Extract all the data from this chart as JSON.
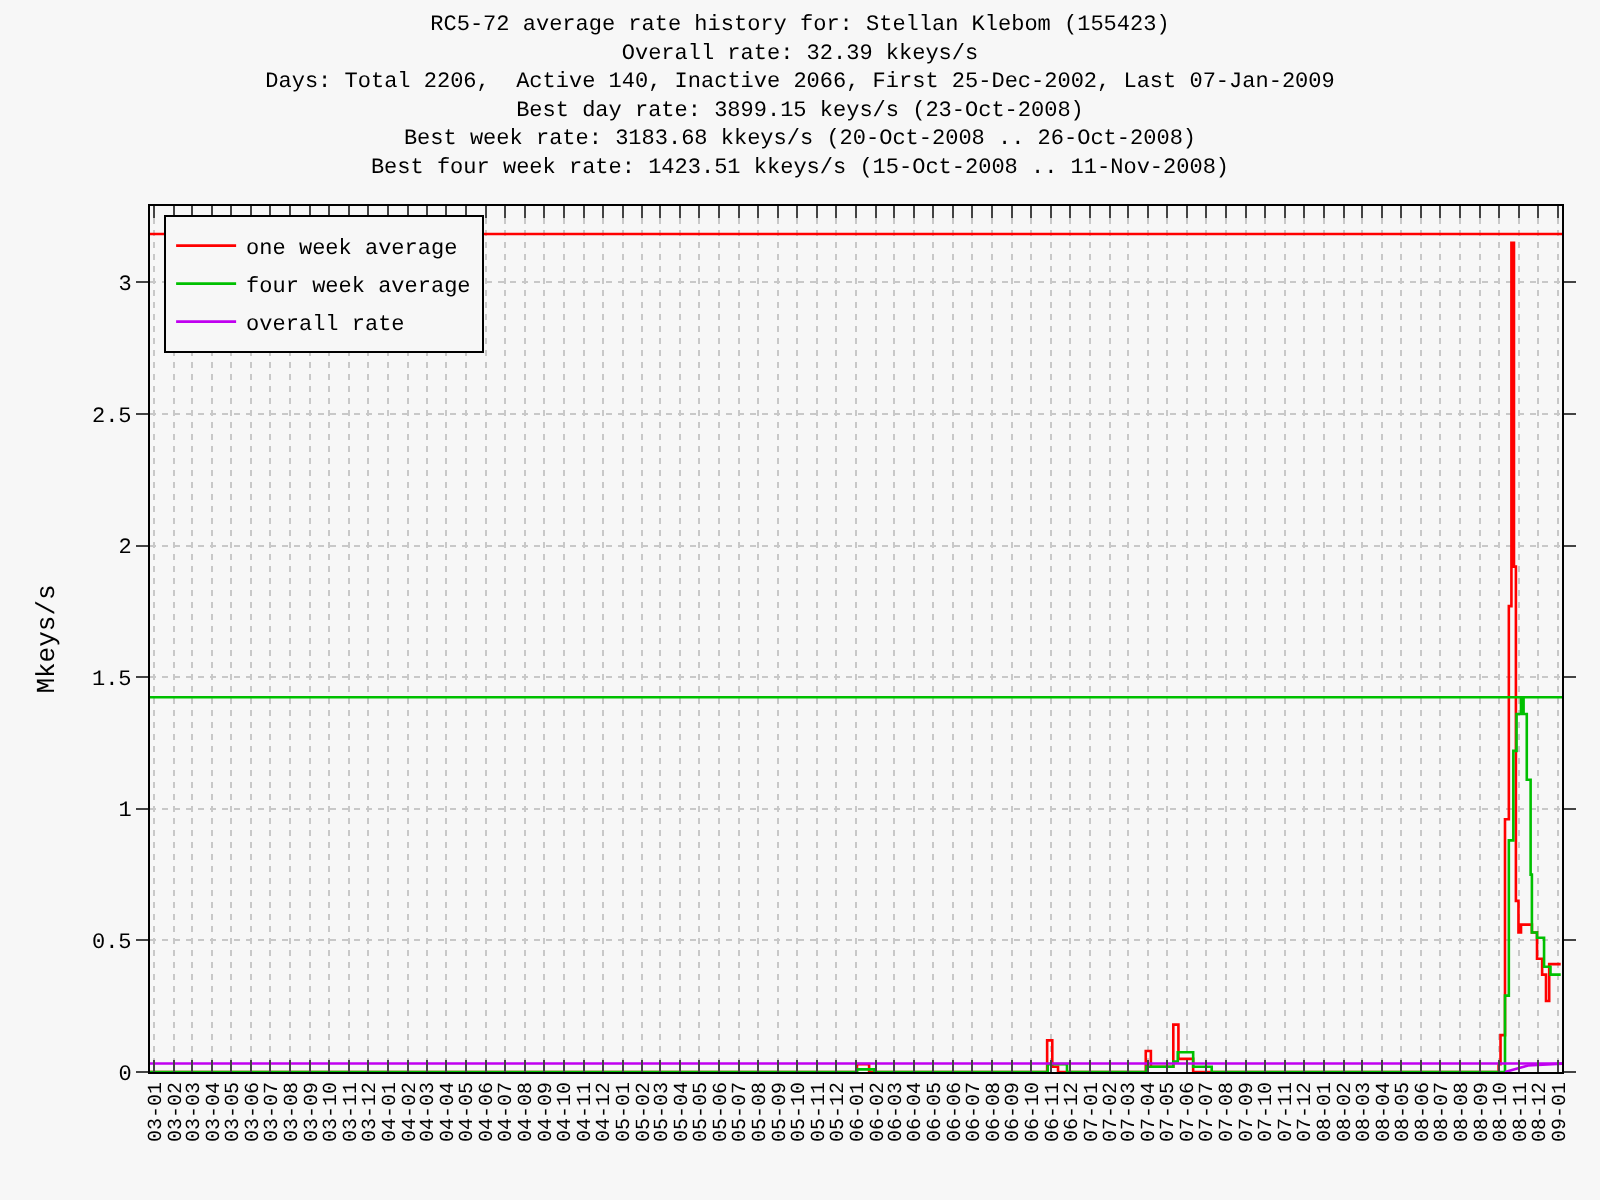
{
  "chart_data": {
    "type": "step",
    "title": "RC5-72 average rate history for: Stellan Klebom (155423)\nOverall rate: 32.39 kkeys/s\nDays: Total 2206,  Active 140, Inactive 2066, First 25-Dec-2002, Last 07-Jan-2009\nBest day rate: 3899.15 keys/s (23-Oct-2008)\nBest week rate: 3183.68 kkeys/s (20-Oct-2008 .. 26-Oct-2008)\nBest four week rate: 1423.51 kkeys/s (15-Oct-2008 .. 11-Nov-2008)",
    "ylabel": "Mkeys/s",
    "xlim": [
      "2002-12-25",
      "2009-01-07"
    ],
    "ylim": [
      0,
      3.29
    ],
    "yticks": [
      0,
      0.5,
      1,
      1.5,
      2,
      2.5,
      3
    ],
    "xticks": [
      {
        "value": "2003-01-01",
        "label": "03-01"
      },
      {
        "value": "2003-02-01",
        "label": "03-02"
      },
      {
        "value": "2003-03-01",
        "label": "03-03"
      },
      {
        "value": "2003-04-01",
        "label": "03-04"
      },
      {
        "value": "2003-05-01",
        "label": "03-05"
      },
      {
        "value": "2003-06-01",
        "label": "03-06"
      },
      {
        "value": "2003-07-01",
        "label": "03-07"
      },
      {
        "value": "2003-08-01",
        "label": "03-08"
      },
      {
        "value": "2003-09-01",
        "label": "03-09"
      },
      {
        "value": "2003-10-01",
        "label": "03-10"
      },
      {
        "value": "2003-11-01",
        "label": "03-11"
      },
      {
        "value": "2003-12-01",
        "label": "03-12"
      },
      {
        "value": "2004-01-01",
        "label": "04-01"
      },
      {
        "value": "2004-02-01",
        "label": "04-02"
      },
      {
        "value": "2004-03-01",
        "label": "04-03"
      },
      {
        "value": "2004-04-01",
        "label": "04-04"
      },
      {
        "value": "2004-05-01",
        "label": "04-05"
      },
      {
        "value": "2004-06-01",
        "label": "04-06"
      },
      {
        "value": "2004-07-01",
        "label": "04-07"
      },
      {
        "value": "2004-08-01",
        "label": "04-08"
      },
      {
        "value": "2004-09-01",
        "label": "04-09"
      },
      {
        "value": "2004-10-01",
        "label": "04-10"
      },
      {
        "value": "2004-11-01",
        "label": "04-11"
      },
      {
        "value": "2004-12-01",
        "label": "04-12"
      },
      {
        "value": "2005-01-01",
        "label": "05-01"
      },
      {
        "value": "2005-02-01",
        "label": "05-02"
      },
      {
        "value": "2005-03-01",
        "label": "05-03"
      },
      {
        "value": "2005-04-01",
        "label": "05-04"
      },
      {
        "value": "2005-05-01",
        "label": "05-05"
      },
      {
        "value": "2005-06-01",
        "label": "05-06"
      },
      {
        "value": "2005-07-01",
        "label": "05-07"
      },
      {
        "value": "2005-08-01",
        "label": "05-08"
      },
      {
        "value": "2005-09-01",
        "label": "05-09"
      },
      {
        "value": "2005-10-01",
        "label": "05-10"
      },
      {
        "value": "2005-11-01",
        "label": "05-11"
      },
      {
        "value": "2005-12-01",
        "label": "05-12"
      },
      {
        "value": "2006-01-01",
        "label": "06-01"
      },
      {
        "value": "2006-02-01",
        "label": "06-02"
      },
      {
        "value": "2006-03-01",
        "label": "06-03"
      },
      {
        "value": "2006-04-01",
        "label": "06-04"
      },
      {
        "value": "2006-05-01",
        "label": "06-05"
      },
      {
        "value": "2006-06-01",
        "label": "06-06"
      },
      {
        "value": "2006-07-01",
        "label": "06-07"
      },
      {
        "value": "2006-08-01",
        "label": "06-08"
      },
      {
        "value": "2006-09-01",
        "label": "06-09"
      },
      {
        "value": "2006-10-01",
        "label": "06-10"
      },
      {
        "value": "2006-11-01",
        "label": "06-11"
      },
      {
        "value": "2006-12-01",
        "label": "06-12"
      },
      {
        "value": "2007-01-01",
        "label": "07-01"
      },
      {
        "value": "2007-02-01",
        "label": "07-02"
      },
      {
        "value": "2007-03-01",
        "label": "07-03"
      },
      {
        "value": "2007-04-01",
        "label": "07-04"
      },
      {
        "value": "2007-05-01",
        "label": "07-05"
      },
      {
        "value": "2007-06-01",
        "label": "07-06"
      },
      {
        "value": "2007-07-01",
        "label": "07-07"
      },
      {
        "value": "2007-08-01",
        "label": "07-08"
      },
      {
        "value": "2007-09-01",
        "label": "07-09"
      },
      {
        "value": "2007-10-01",
        "label": "07-10"
      },
      {
        "value": "2007-11-01",
        "label": "07-11"
      },
      {
        "value": "2007-12-01",
        "label": "07-12"
      },
      {
        "value": "2008-01-01",
        "label": "08-01"
      },
      {
        "value": "2008-02-01",
        "label": "08-02"
      },
      {
        "value": "2008-03-01",
        "label": "08-03"
      },
      {
        "value": "2008-04-01",
        "label": "08-04"
      },
      {
        "value": "2008-05-01",
        "label": "08-05"
      },
      {
        "value": "2008-06-01",
        "label": "08-06"
      },
      {
        "value": "2008-07-01",
        "label": "08-07"
      },
      {
        "value": "2008-08-01",
        "label": "08-08"
      },
      {
        "value": "2008-09-01",
        "label": "08-09"
      },
      {
        "value": "2008-10-01",
        "label": "08-10"
      },
      {
        "value": "2008-11-01",
        "label": "08-11"
      },
      {
        "value": "2008-12-01",
        "label": "08-12"
      },
      {
        "value": "2009-01-01",
        "label": "09-01"
      }
    ],
    "grid": true,
    "legend": "top left",
    "series": [
      {
        "name": "one week average",
        "color": "#ff0000",
        "x": [
          "2002-12-25",
          "2006-01-01",
          "2006-01-02",
          "2006-01-20",
          "2006-01-21",
          "2006-10-25",
          "2006-10-26",
          "2006-11-02",
          "2006-11-03",
          "2006-11-12",
          "2007-03-28",
          "2007-03-29",
          "2007-04-05",
          "2007-04-06",
          "2007-05-10",
          "2007-05-11",
          "2007-05-18",
          "2007-05-19",
          "2007-06-10",
          "2007-06-11",
          "2008-09-29",
          "2008-09-30",
          "2008-10-03",
          "2008-10-10",
          "2008-10-16",
          "2008-10-20",
          "2008-10-24",
          "2008-10-27",
          "2008-10-31",
          "2008-11-04",
          "2008-11-12",
          "2008-11-21",
          "2008-11-29",
          "2008-12-07",
          "2008-12-13",
          "2008-12-18",
          "2009-01-05"
        ],
        "values": [
          0,
          0,
          0.03,
          0.03,
          0,
          0,
          0.12,
          0.12,
          0.02,
          0,
          0,
          0.08,
          0.08,
          0.02,
          0.02,
          0.18,
          0.18,
          0.05,
          0.05,
          0,
          0,
          0.03,
          0.14,
          0.96,
          1.77,
          3.15,
          1.92,
          0.65,
          0.53,
          0.56,
          0.56,
          0.53,
          0.43,
          0.37,
          0.27,
          0.41,
          0.41
        ]
      },
      {
        "name": "four week average",
        "color": "#00c000",
        "x": [
          "2002-12-25",
          "2006-01-01",
          "2006-01-02",
          "2006-01-28",
          "2006-01-29",
          "2006-10-26",
          "2006-10-27",
          "2006-11-25",
          "2006-11-26",
          "2007-03-29",
          "2007-03-30",
          "2007-05-11",
          "2007-05-18",
          "2007-06-10",
          "2007-06-11",
          "2007-07-10",
          "2008-09-30",
          "2008-10-10",
          "2008-10-16",
          "2008-10-23",
          "2008-10-28",
          "2008-11-04",
          "2008-11-08",
          "2008-11-13",
          "2008-11-19",
          "2008-11-21",
          "2008-11-29",
          "2008-12-10",
          "2008-12-20",
          "2009-01-05"
        ],
        "values": [
          0,
          0,
          0.01,
          0.01,
          0,
          0,
          0.03,
          0.03,
          0,
          0,
          0.02,
          0.04,
          0.075,
          0.075,
          0.02,
          0,
          0,
          0.29,
          0.88,
          1.22,
          1.36,
          1.42,
          1.36,
          1.11,
          0.75,
          0.53,
          0.51,
          0.4,
          0.37,
          0.37
        ]
      },
      {
        "name": "overall rate",
        "color": "#c000f0",
        "type": "line",
        "x": [
          "2002-12-25",
          "2009-01-07"
        ],
        "values": [
          0.03239,
          0.03239
        ]
      },
      {
        "color": "#c000f0",
        "type": "line",
        "x": [
          "2008-10-10",
          "2008-10-25",
          "2008-11-15",
          "2009-01-07"
        ],
        "values": [
          0,
          0.01,
          0.025,
          0.032
        ]
      }
    ],
    "ref_lines": [
      {
        "axis": "y",
        "value": 3.18368,
        "color": "#ff0000"
      },
      {
        "axis": "y",
        "value": 1.42351,
        "color": "#00c000"
      }
    ]
  }
}
